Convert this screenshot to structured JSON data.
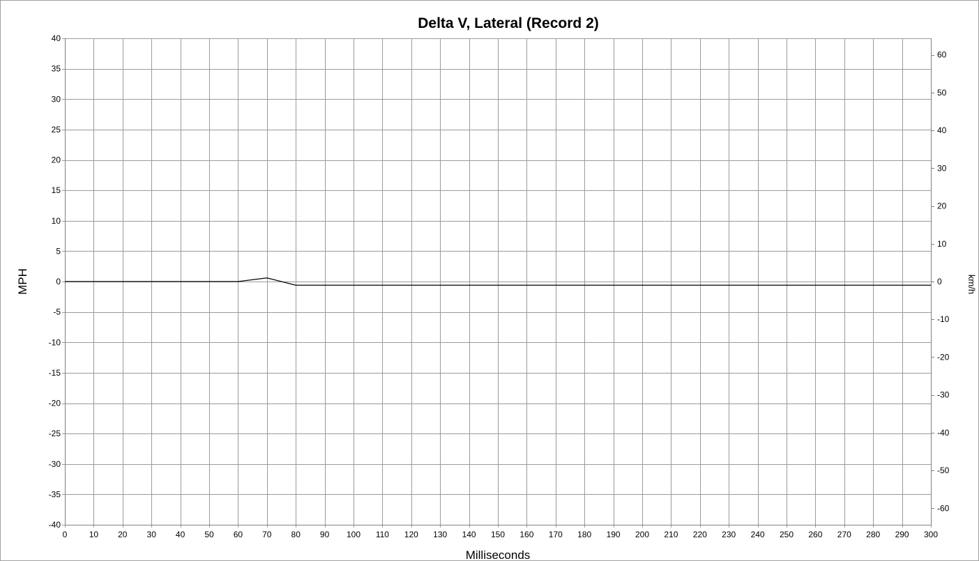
{
  "chart_data": {
    "type": "line",
    "title": "Delta V, Lateral (Record 2)",
    "xlabel": "Milliseconds",
    "ylabel": "MPH",
    "ylabel_right": "km/h",
    "xlim": [
      0,
      300
    ],
    "ylim": [
      -40,
      40
    ],
    "ylim_right": [
      -64.37,
      64.37
    ],
    "x_ticks": [
      0,
      10,
      20,
      30,
      40,
      50,
      60,
      70,
      80,
      90,
      100,
      110,
      120,
      130,
      140,
      150,
      160,
      170,
      180,
      190,
      200,
      210,
      220,
      230,
      240,
      250,
      260,
      270,
      280,
      290,
      300
    ],
    "y_ticks": [
      -40,
      -35,
      -30,
      -25,
      -20,
      -15,
      -10,
      -5,
      0,
      5,
      10,
      15,
      20,
      25,
      30,
      35,
      40
    ],
    "y_ticks_right": [
      -60,
      -50,
      -40,
      -30,
      -20,
      -10,
      0,
      10,
      20,
      30,
      40,
      50,
      60
    ],
    "grid": true,
    "series": [
      {
        "x": [
          0,
          10,
          20,
          30,
          40,
          50,
          60,
          70,
          80,
          90,
          100,
          110,
          120,
          130,
          140,
          150,
          160,
          170,
          180,
          190,
          200,
          210,
          220,
          230,
          240,
          250,
          260,
          270,
          280,
          290,
          300
        ],
        "values": [
          0,
          0,
          0,
          0,
          0,
          0,
          0,
          0.6,
          -0.6,
          -0.6,
          -0.6,
          -0.6,
          -0.6,
          -0.6,
          -0.6,
          -0.6,
          -0.6,
          -0.6,
          -0.6,
          -0.6,
          -0.6,
          -0.6,
          -0.6,
          -0.6,
          -0.6,
          -0.6,
          -0.6,
          -0.6,
          -0.6,
          -0.6,
          -0.6
        ]
      }
    ]
  }
}
